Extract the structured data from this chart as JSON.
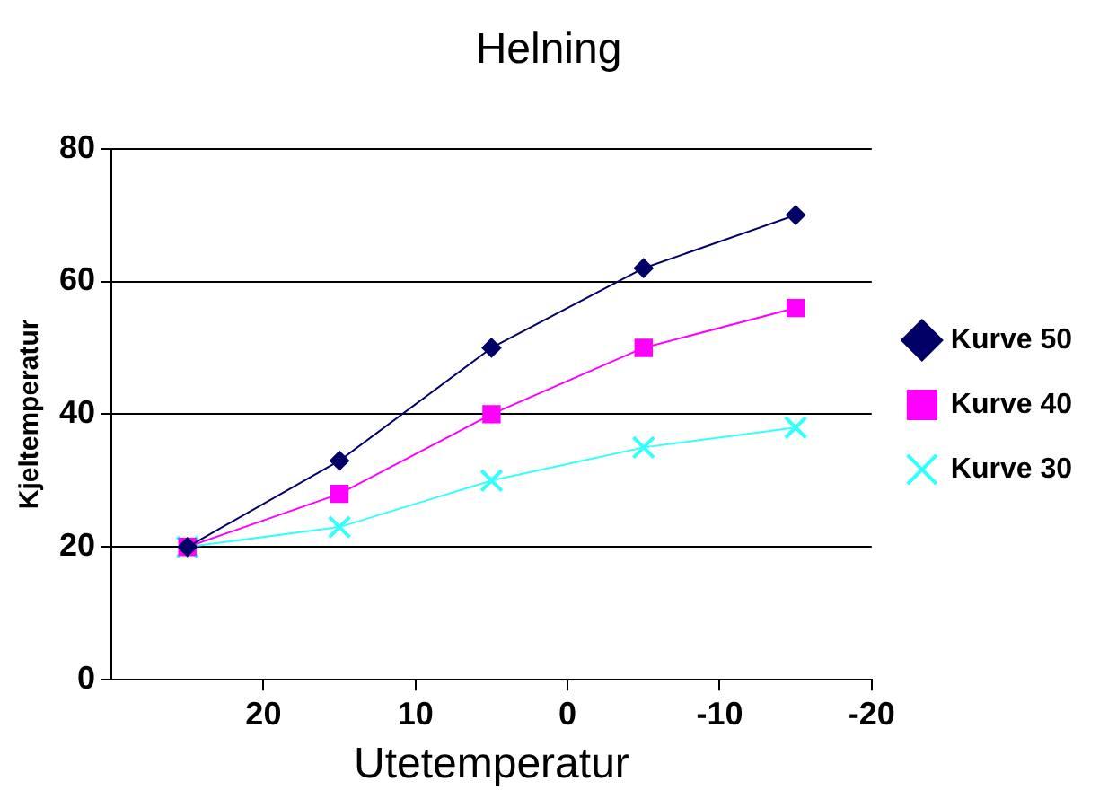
{
  "chart_data": {
    "type": "line",
    "title": "Helning",
    "xlabel": "Utetemperatur",
    "ylabel": "Kjeltemperatur",
    "x": [
      25,
      15,
      5,
      -5,
      -15
    ],
    "xlim": [
      30,
      -20
    ],
    "xticks": [
      20,
      10,
      0,
      -10,
      -20
    ],
    "ylim": [
      0,
      80
    ],
    "yticks": [
      0,
      20,
      40,
      60,
      80
    ],
    "grid": "y",
    "legend": "right",
    "line_style": "solid",
    "series": [
      {
        "name": "Kurve 50",
        "color": "#000066",
        "marker": "diamond",
        "values": [
          20,
          33,
          50,
          62,
          70
        ]
      },
      {
        "name": "Kurve 40",
        "color": "#ff00ff",
        "marker": "square",
        "values": [
          20,
          28,
          40,
          50,
          56
        ]
      },
      {
        "name": "Kurve 30",
        "color": "#33ffff",
        "marker": "cross",
        "values": [
          20,
          23,
          30,
          35,
          38
        ]
      }
    ]
  }
}
